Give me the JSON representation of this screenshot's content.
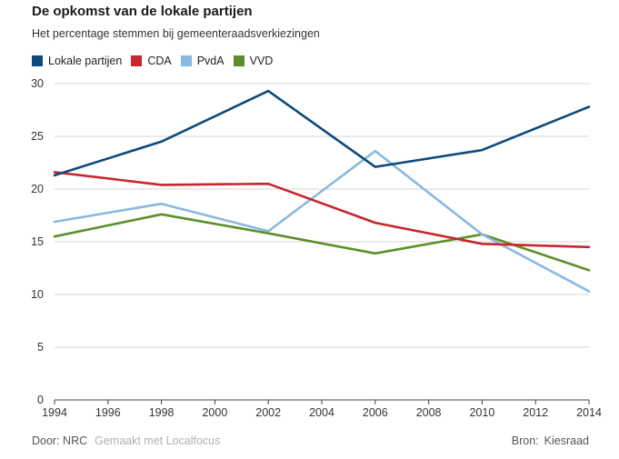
{
  "header": {
    "title": "De opkomst van de lokale partijen",
    "subtitle": "Het percentage stemmen bij gemeenteraadsverkiezingen"
  },
  "colors": {
    "lokale": "#0d4a7a",
    "cda": "#c8262d",
    "pvda": "#8ab9df",
    "vvd": "#5c8f2b",
    "grid": "#d5d5d5",
    "axis": "#444444"
  },
  "footer": {
    "by": "Door: NRC",
    "made_with": "Gemaakt met Localfocus",
    "source_label": "Bron:",
    "source": "Kiesraad"
  },
  "chart_data": {
    "type": "line",
    "x": [
      1994,
      1998,
      2002,
      2006,
      2010,
      2014
    ],
    "xticks": [
      1994,
      1996,
      1998,
      2000,
      2002,
      2004,
      2006,
      2008,
      2010,
      2012,
      2014
    ],
    "ylim": [
      0,
      30
    ],
    "yticks": [
      0,
      5,
      10,
      15,
      20,
      25,
      30
    ],
    "grid": true,
    "legend_position": "top-left",
    "xlabel": "",
    "ylabel": "",
    "series": [
      {
        "name": "Lokale partijen",
        "color_key": "lokale",
        "values": [
          21.3,
          24.5,
          29.3,
          22.1,
          23.7,
          27.8
        ]
      },
      {
        "name": "CDA",
        "color_key": "cda",
        "values": [
          21.6,
          20.4,
          20.5,
          16.8,
          14.8,
          14.5
        ]
      },
      {
        "name": "PvdA",
        "color_key": "pvda",
        "values": [
          16.9,
          18.6,
          16.0,
          23.6,
          15.7,
          10.3
        ]
      },
      {
        "name": "VVD",
        "color_key": "vvd",
        "values": [
          15.5,
          17.6,
          15.8,
          13.9,
          15.7,
          12.3
        ]
      }
    ]
  }
}
